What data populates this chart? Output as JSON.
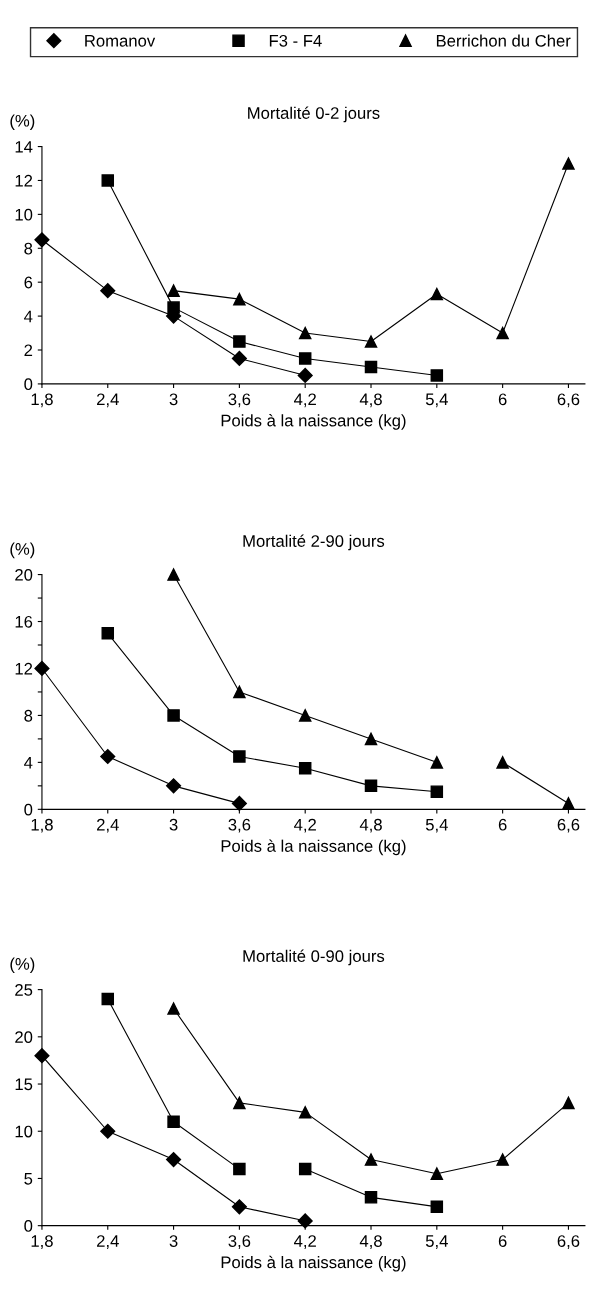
{
  "chart_data": [
    {
      "type": "line",
      "title": "Mortalité 0-2 jours",
      "xlabel": "Poids à la naissance (kg)",
      "ylabel": "(%)",
      "x": [
        1.8,
        2.4,
        3,
        3.6,
        4.2,
        4.8,
        5.4,
        6,
        6.6
      ],
      "series": [
        {
          "name": "Romanov",
          "color": "#000000",
          "marker": "diamond",
          "values": [
            8.5,
            5.5,
            4,
            1.5,
            0.5,
            null,
            null,
            null,
            null
          ]
        },
        {
          "name": "F3 - F4",
          "color": "#000000",
          "marker": "square",
          "values": [
            null,
            12,
            4.5,
            2.5,
            1.5,
            1,
            0.5,
            null,
            null
          ]
        },
        {
          "name": "Berrichon du Cher",
          "color": "#000000",
          "marker": "triangle",
          "values": [
            null,
            null,
            5.5,
            5,
            3,
            2.5,
            5.3,
            3,
            13
          ]
        }
      ],
      "xlim": [
        1.8,
        6.75
      ],
      "xticks": [
        {
          "value": 1.8,
          "label": "1,8"
        },
        {
          "value": 2.4,
          "label": "2,4"
        },
        3,
        {
          "value": 3.6,
          "label": "3,6"
        },
        {
          "value": 4.2,
          "label": "4,2"
        },
        {
          "value": 4.8,
          "label": "4,8"
        },
        {
          "value": 5.4,
          "label": "5,4"
        },
        6,
        {
          "value": 6.6,
          "label": "6,6"
        }
      ],
      "ylim": [
        0,
        14
      ],
      "yticks": [
        0,
        2,
        4,
        6,
        8,
        10,
        12,
        14
      ],
      "grid": false,
      "legend": "top"
    },
    {
      "type": "line",
      "title": "Mortalité 2-90 jours",
      "xlabel": "Poids à la naissance (kg)",
      "ylabel": "(%)",
      "x": [
        1.8,
        2.4,
        3,
        3.6,
        4.2,
        4.8,
        5.4,
        6,
        6.6
      ],
      "series": [
        {
          "color": "#000000",
          "marker": "diamond",
          "values": [
            12,
            4.5,
            2,
            0.5,
            null,
            null,
            null,
            null,
            null
          ]
        },
        {
          "color": "#000000",
          "marker": "square",
          "values": [
            null,
            15,
            8,
            4.5,
            3.5,
            2,
            1.5,
            null,
            null
          ]
        },
        {
          "color": "#000000",
          "marker": "triangle",
          "values": [
            null,
            null,
            20,
            10,
            8,
            6,
            4,
            null,
            null
          ]
        },
        {
          "color": "#000000",
          "marker": "triangle",
          "values": [
            null,
            null,
            null,
            null,
            null,
            null,
            null,
            4,
            0.5
          ]
        }
      ],
      "xlim": [
        1.8,
        6.75
      ],
      "xticks": [
        {
          "value": 1.8,
          "label": "1,8"
        },
        {
          "value": 2.4,
          "label": "2,4"
        },
        3,
        {
          "value": 3.6,
          "label": "3,6"
        },
        {
          "value": 4.2,
          "label": "4,2"
        },
        {
          "value": 4.8,
          "label": "4,8"
        },
        {
          "value": 5.4,
          "label": "5,4"
        },
        6,
        {
          "value": 6.6,
          "label": "6,6"
        }
      ],
      "ylim": [
        0,
        20
      ],
      "yticks": [
        0,
        {
          "value": 2,
          "label": null
        },
        4,
        {
          "value": 6,
          "label": null
        },
        8,
        {
          "value": 10,
          "label": null
        },
        12,
        {
          "value": 14,
          "label": null
        },
        16,
        {
          "value": 18,
          "label": null
        },
        20
      ],
      "grid": false
    },
    {
      "type": "line",
      "title": "Mortalité 0-90 jours",
      "xlabel": "Poids à la naissance (kg)",
      "ylabel": "(%)",
      "x": [
        1.8,
        2.4,
        3,
        3.6,
        4.2,
        4.8,
        5.4,
        6,
        6.6
      ],
      "series": [
        {
          "color": "#000000",
          "marker": "diamond",
          "values": [
            18,
            10,
            7,
            2,
            0.5,
            null,
            null,
            null,
            null
          ]
        },
        {
          "color": "#000000",
          "marker": "square",
          "values": [
            null,
            24,
            11,
            6,
            null,
            null,
            null,
            null,
            null
          ]
        },
        {
          "color": "#000000",
          "marker": "square",
          "values": [
            null,
            null,
            null,
            null,
            6,
            3,
            2,
            null,
            null
          ]
        },
        {
          "color": "#000000",
          "marker": "triangle",
          "values": [
            null,
            null,
            23,
            13,
            12,
            7,
            5.5,
            7,
            13
          ]
        }
      ],
      "xlim": [
        1.8,
        6.75
      ],
      "xticks": [
        {
          "value": 1.8,
          "label": "1,8"
        },
        {
          "value": 2.4,
          "label": "2,4"
        },
        3,
        {
          "value": 3.6,
          "label": "3,6"
        },
        {
          "value": 4.2,
          "label": "4,2"
        },
        {
          "value": 4.8,
          "label": "4,8"
        },
        {
          "value": 5.4,
          "label": "5,4"
        },
        6,
        {
          "value": 6.6,
          "label": "6,6"
        }
      ],
      "ylim": [
        0,
        25
      ],
      "yticks": [
        0,
        5,
        10,
        15,
        20,
        25
      ],
      "grid": false
    }
  ]
}
